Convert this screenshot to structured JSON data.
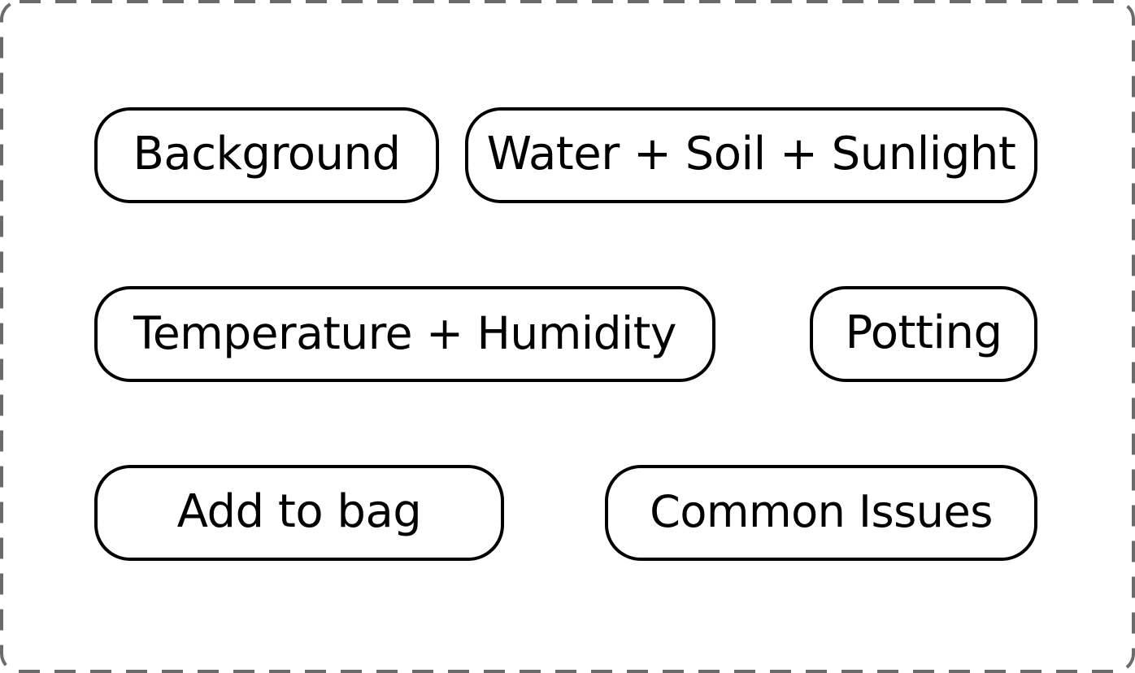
{
  "colors": {
    "border": "#000000",
    "frame_dash": "#6b6b6b",
    "background": "#ffffff"
  },
  "buttons": {
    "background": "Background",
    "water_soil_sunlight": "Water + Soil + Sunlight",
    "temperature_humidity": "Temperature + Humidity",
    "potting": "Potting",
    "add_to_bag": "Add to bag",
    "common_issues": "Common Issues"
  }
}
